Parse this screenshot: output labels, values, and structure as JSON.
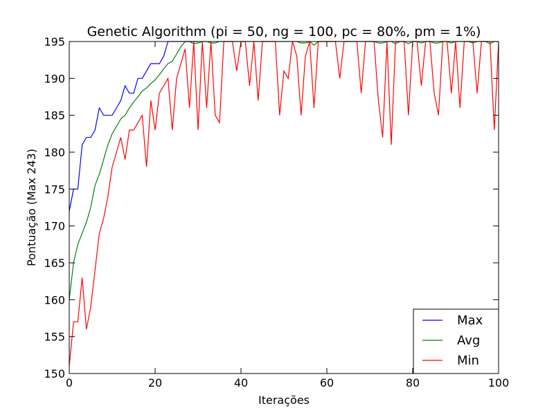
{
  "chart_data": {
    "type": "line",
    "title": "Genetic Algorithm (pi = 50, ng = 100, pc = 80%, pm = 1%)",
    "xlabel": "Iterações",
    "ylabel": "Pontuação (Max 243)",
    "xlim": [
      0,
      100
    ],
    "ylim": [
      150,
      195
    ],
    "xticks": [
      "0",
      "20",
      "40",
      "60",
      "80",
      "100"
    ],
    "yticks": [
      "150",
      "155",
      "160",
      "165",
      "170",
      "175",
      "180",
      "185",
      "190",
      "195"
    ],
    "grid": false,
    "legend_position": "lower-right",
    "series": [
      {
        "name": "Max",
        "color": "#0000ff",
        "x": [
          0,
          1,
          2,
          3,
          4,
          5,
          6,
          7,
          8,
          9,
          10,
          11,
          12,
          13,
          14,
          15,
          16,
          17,
          18,
          19,
          20,
          21,
          22,
          23,
          24,
          25,
          26,
          27,
          28,
          29,
          30
        ],
        "values": [
          172,
          175,
          175,
          181,
          182,
          182,
          183,
          186,
          185,
          185,
          185,
          186,
          187,
          189,
          188,
          188,
          190,
          190,
          191,
          192,
          192,
          192,
          193,
          195,
          195,
          195,
          195,
          195,
          195,
          195,
          195
        ]
      },
      {
        "name": "Avg",
        "color": "#008000",
        "x": [
          0,
          1,
          2,
          3,
          4,
          5,
          6,
          7,
          8,
          9,
          10,
          11,
          12,
          13,
          14,
          15,
          16,
          17,
          18,
          19,
          20,
          21,
          22,
          23,
          24,
          25,
          26,
          27,
          28,
          29,
          30,
          31,
          32,
          33,
          34,
          35,
          36,
          37,
          38,
          39,
          40,
          45,
          49,
          50,
          51,
          52,
          53,
          54,
          55,
          56,
          57,
          58,
          59,
          60,
          65,
          70,
          71,
          72,
          73,
          74,
          75,
          76,
          77,
          78,
          79,
          80,
          81,
          82,
          83,
          84,
          85,
          86,
          87,
          88,
          89,
          90,
          91,
          92,
          93,
          94,
          95,
          96,
          97,
          98,
          99,
          100
        ],
        "values": [
          160,
          165,
          167.5,
          169,
          170.5,
          172.5,
          175.5,
          177,
          179,
          181,
          182.5,
          183.5,
          184.5,
          185,
          186,
          186.8,
          187.5,
          188.3,
          188.7,
          189.3,
          189.8,
          190.5,
          191.3,
          192,
          192.3,
          193.3,
          194.3,
          195,
          195,
          194.7,
          194.8,
          195,
          195,
          194.8,
          194.8,
          195,
          195,
          195,
          195,
          195,
          195,
          195,
          195,
          195,
          195,
          195,
          195,
          194.8,
          194.8,
          195,
          194.5,
          195,
          195,
          195,
          195,
          195,
          195,
          194.8,
          194.8,
          195,
          195,
          194.7,
          195,
          195,
          194.7,
          195,
          195,
          194.8,
          195,
          195,
          194.8,
          194.8,
          195,
          195,
          194.8,
          195,
          195,
          195,
          195,
          194.8,
          195,
          195,
          195,
          194.7,
          195,
          195
        ]
      },
      {
        "name": "Min",
        "color": "#ff0000",
        "x": [
          0,
          1,
          2,
          3,
          4,
          5,
          6,
          7,
          8,
          9,
          10,
          11,
          12,
          13,
          14,
          15,
          16,
          17,
          18,
          19,
          20,
          21,
          22,
          23,
          24,
          25,
          26,
          27,
          28,
          29,
          30,
          31,
          32,
          33,
          34,
          35,
          36,
          37,
          38,
          39,
          40,
          41,
          42,
          43,
          44,
          45,
          46,
          47,
          48,
          49,
          50,
          51,
          52,
          53,
          54,
          55,
          56,
          57,
          58,
          59,
          60,
          61,
          62,
          63,
          64,
          65,
          66,
          67,
          68,
          69,
          70,
          71,
          72,
          73,
          74,
          75,
          76,
          77,
          78,
          79,
          80,
          81,
          82,
          83,
          84,
          85,
          86,
          87,
          88,
          89,
          90,
          91,
          92,
          93,
          94,
          95,
          96,
          97,
          98,
          99,
          100
        ],
        "values": [
          151,
          157,
          157,
          163,
          156,
          159,
          164,
          169,
          171,
          174,
          178,
          180,
          182,
          179,
          183,
          183,
          184,
          185,
          178,
          187,
          183,
          188,
          189,
          190,
          183,
          190,
          192,
          194,
          186,
          195,
          183,
          195,
          186,
          195,
          185,
          184,
          195,
          195,
          195,
          191,
          195,
          195,
          189,
          195,
          187,
          195,
          195,
          195,
          195,
          185,
          191,
          190,
          195,
          193,
          185,
          193,
          195,
          186,
          195,
          195,
          195,
          195,
          195,
          190,
          195,
          195,
          195,
          195,
          188,
          195,
          195,
          195,
          187,
          182,
          195,
          181,
          195,
          195,
          195,
          185,
          195,
          195,
          189,
          195,
          195,
          188,
          185,
          195,
          195,
          188,
          195,
          186,
          195,
          195,
          195,
          188,
          195,
          195,
          195,
          183,
          195
        ]
      }
    ]
  }
}
